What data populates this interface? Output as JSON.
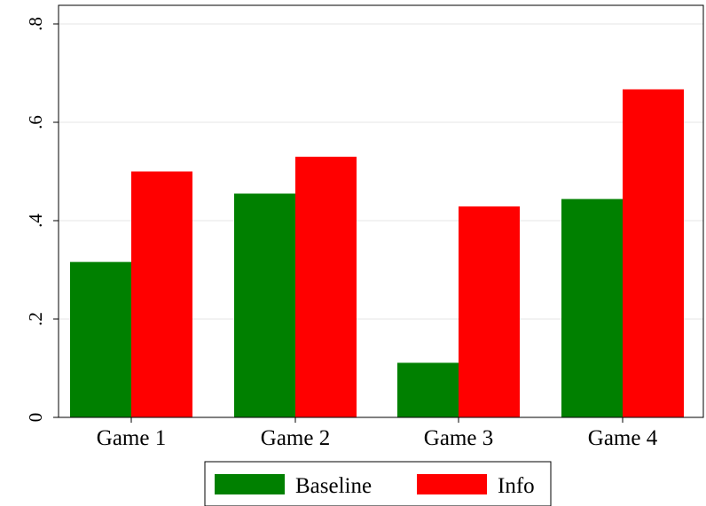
{
  "chart_data": {
    "type": "bar",
    "categories": [
      "Game 1",
      "Game 2",
      "Game 3",
      "Game 4"
    ],
    "series": [
      {
        "name": "Baseline",
        "values": [
          0.316,
          0.455,
          0.111,
          0.444
        ],
        "color": "#008000"
      },
      {
        "name": "Info",
        "values": [
          0.5,
          0.53,
          0.429,
          0.667
        ],
        "color": "#ff0000"
      }
    ],
    "ylim": [
      0,
      0.8
    ],
    "yticks": [
      0,
      0.2,
      0.4,
      0.6,
      0.8
    ],
    "ytick_labels": [
      "0",
      ".2",
      ".4",
      ".6",
      ".8"
    ],
    "grid": true,
    "legend_position": "bottom"
  }
}
